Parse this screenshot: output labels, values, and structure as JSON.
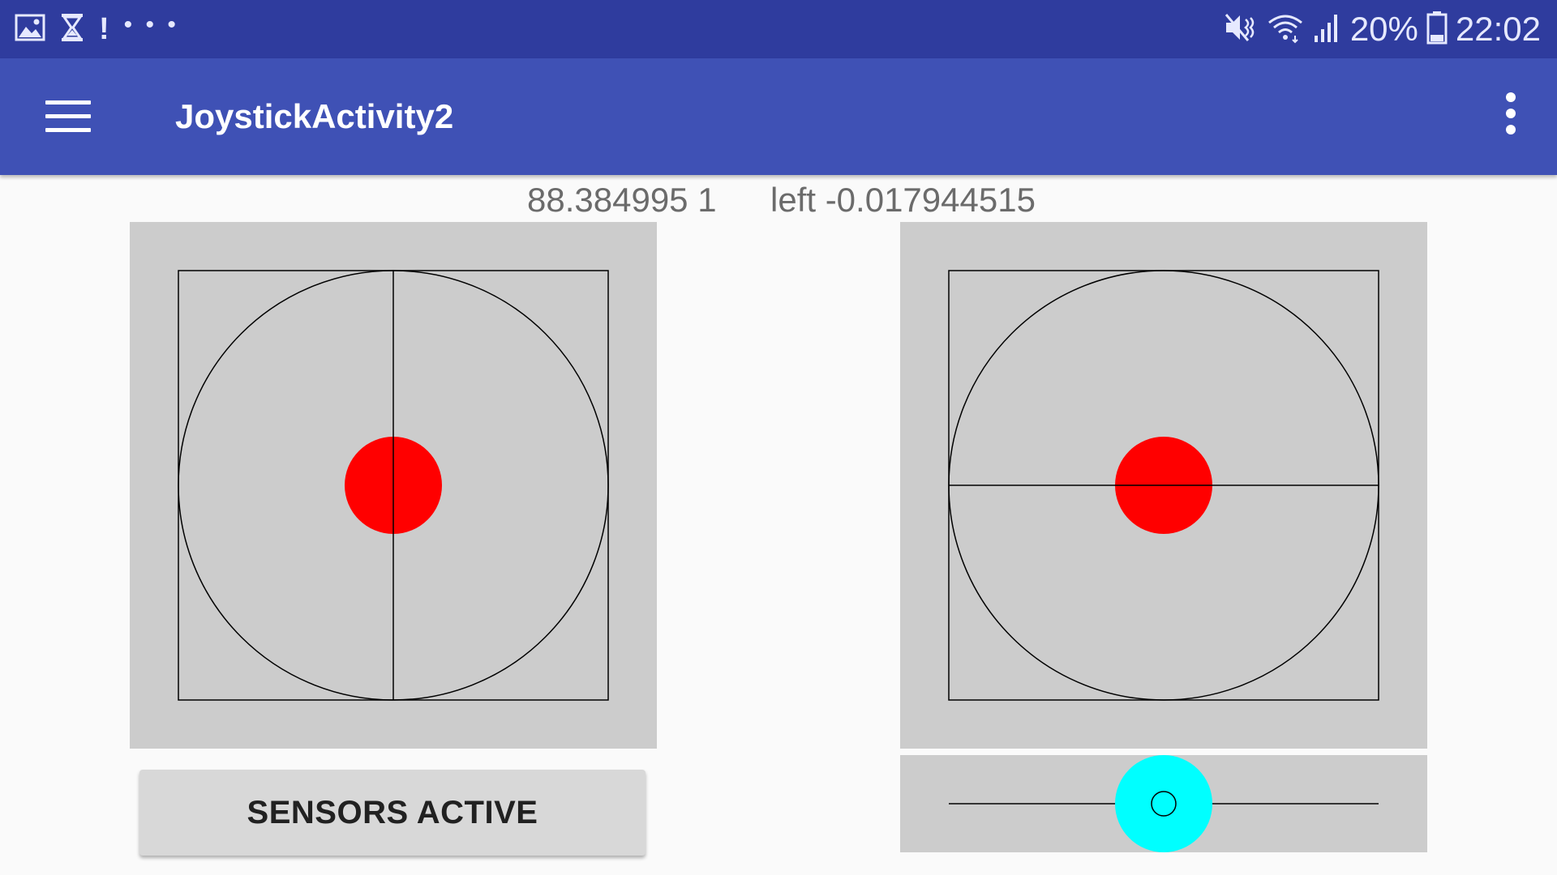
{
  "status_bar": {
    "left_icons": [
      "image-icon",
      "hourglass-icon",
      "alert-icon",
      "more-notifications-icon"
    ],
    "right_icons": [
      "mute-icon",
      "wifi-icon",
      "signal-icon",
      "battery-icon"
    ],
    "battery": "20%",
    "time": "22:02"
  },
  "app_bar": {
    "title": "JoystickActivity2",
    "menu_icon": "hamburger-menu-icon",
    "overflow_icon": "more-vert-icon"
  },
  "readouts": {
    "left_value": "88.384995 1",
    "right_value": "left -0.017944515"
  },
  "controls": {
    "sensor_button_label": "SENSORS ACTIVE",
    "slider_position": 0.5
  },
  "colors": {
    "status_bar": "#2f3c9e",
    "app_bar": "#3f51b5",
    "pad_background": "#cccccc",
    "knob": "#ff0000",
    "slider_knob": "#00ffff"
  }
}
